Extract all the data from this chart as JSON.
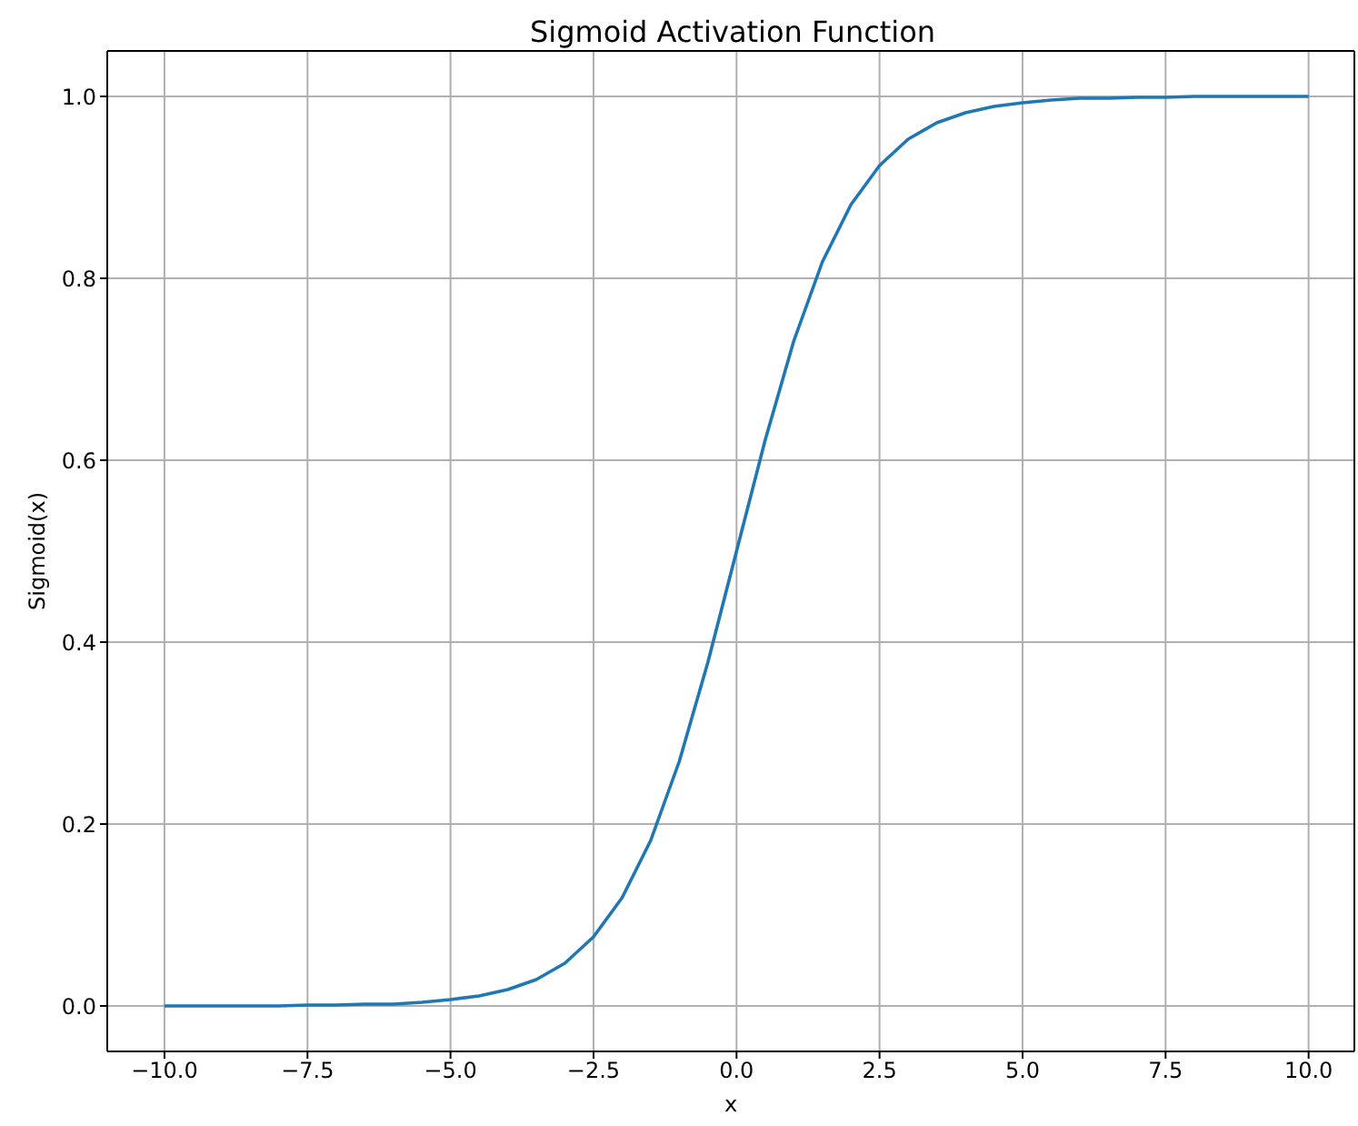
{
  "chart_data": {
    "type": "line",
    "title": "Sigmoid Activation Function",
    "xlabel": "x",
    "ylabel": "Sigmoid(x)",
    "x": [
      -10,
      -9.5,
      -9,
      -8.5,
      -8,
      -7.5,
      -7,
      -6.5,
      -6,
      -5.5,
      -5,
      -4.5,
      -4,
      -3.5,
      -3,
      -2.5,
      -2,
      -1.5,
      -1,
      -0.5,
      0,
      0.5,
      1,
      1.5,
      2,
      2.5,
      3,
      3.5,
      4,
      4.5,
      5,
      5.5,
      6,
      6.5,
      7,
      7.5,
      8,
      8.5,
      9,
      9.5,
      10
    ],
    "series": [
      {
        "color": "#1f77b4",
        "values": [
          0.0,
          0.0,
          0.0,
          0.0,
          0.0,
          0.001,
          0.001,
          0.002,
          0.002,
          0.004,
          0.007,
          0.011,
          0.018,
          0.029,
          0.047,
          0.076,
          0.119,
          0.182,
          0.269,
          0.378,
          0.5,
          0.622,
          0.731,
          0.818,
          0.881,
          0.924,
          0.953,
          0.971,
          0.982,
          0.989,
          0.993,
          0.996,
          0.998,
          0.998,
          0.999,
          0.999,
          1.0,
          1.0,
          1.0,
          1.0,
          1.0
        ]
      }
    ],
    "xlim": [
      -11,
      10.8
    ],
    "ylim": [
      -0.05,
      1.05
    ],
    "xticks": [
      {
        "value": -10,
        "label": "−10.0"
      },
      {
        "value": -7.5,
        "label": "−7.5"
      },
      {
        "value": -5,
        "label": "−5.0"
      },
      {
        "value": -2.5,
        "label": "−2.5"
      },
      {
        "value": 0,
        "label": "0.0"
      },
      {
        "value": 2.5,
        "label": "2.5"
      },
      {
        "value": 5,
        "label": "5.0"
      },
      {
        "value": 7.5,
        "label": "7.5"
      },
      {
        "value": 10,
        "label": "10.0"
      }
    ],
    "yticks": [
      {
        "value": 0,
        "label": "0.0"
      },
      {
        "value": 0.2,
        "label": "0.2"
      },
      {
        "value": 0.4,
        "label": "0.4"
      },
      {
        "value": 0.6,
        "label": "0.6"
      },
      {
        "value": 0.8,
        "label": "0.8"
      },
      {
        "value": 1,
        "label": "1.0"
      }
    ],
    "grid": true,
    "marker": "none",
    "line_style": "solid"
  }
}
